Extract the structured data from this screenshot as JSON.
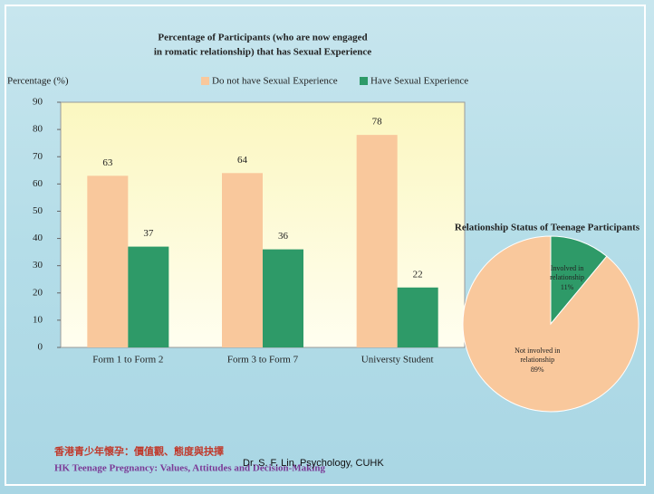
{
  "chart_data": [
    {
      "type": "bar",
      "title": [
        "Percentage of Participants (who are now engaged",
        "in romatic relationship) that has Sexual Experience"
      ],
      "y_label": "Percentage  (%)",
      "categories": [
        "Form 1 to Form 2",
        "Form 3 to Form 7",
        "Universty Student"
      ],
      "series": [
        {
          "name": "Do not have Sexual Experience",
          "color": "#f9c89c",
          "values": [
            63,
            64,
            78
          ]
        },
        {
          "name": "Have Sexual Experience",
          "color": "#2e9a68",
          "values": [
            37,
            36,
            22
          ]
        }
      ],
      "ylim": [
        0,
        90
      ],
      "yticks": [
        0,
        10,
        20,
        30,
        40,
        50,
        60,
        70,
        80,
        90
      ]
    },
    {
      "type": "pie",
      "title": "Relationship Status of Teenage Participants",
      "categories": [
        "Involved in relationship",
        "Not involved in relationship"
      ],
      "values": [
        11,
        89
      ],
      "value_labels": [
        "11%",
        "89%"
      ],
      "colors": [
        "#2e9a68",
        "#f9c89c"
      ]
    }
  ],
  "footer": {
    "logo_chinese": "香港青少年懷孕：價值觀、態度與抉擇",
    "logo_english": "HK Teenage Pregnancy: Values, Attitudes and Decision-Making",
    "credit": "Dr. S. F. Lin, Psychology, CUHK"
  }
}
